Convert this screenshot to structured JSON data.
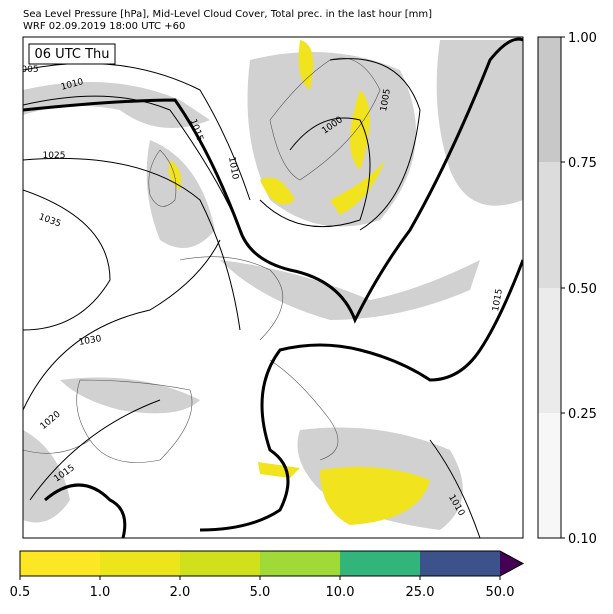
{
  "header": {
    "title": "Sea Level Pressure [hPa], Mid-Level Cloud Cover, Total prec. in the last hour [mm]",
    "subtitle": "WRF 02.09.2019 18:00 UTC +60"
  },
  "map": {
    "time_label": "06 UTC Thu",
    "isobar_labels": [
      "005",
      "1010",
      "1025",
      "1035",
      "1030",
      "1020",
      "1015",
      "1015",
      "1010",
      "1000",
      "1005",
      "1015",
      "1010"
    ]
  },
  "cloud_colorbar": {
    "ticks": [
      "1.00",
      "0.75",
      "0.50",
      "0.25",
      "0.10"
    ]
  },
  "precip_colorbar": {
    "ticks": [
      "0.5",
      "1.0",
      "2.0",
      "5.0",
      "10.0",
      "25.0",
      "50.0"
    ]
  }
}
